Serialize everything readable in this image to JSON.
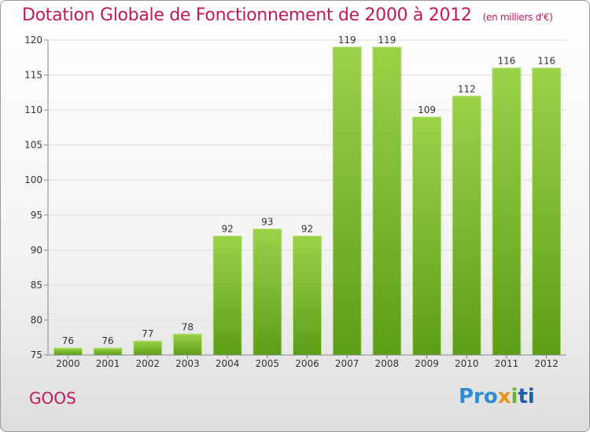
{
  "title": "Dotation Globale de Fonctionnement de 2000 à 2012",
  "subtitle": "(en milliers d'€)",
  "commune": "GOOS",
  "logo": {
    "p1": "Pro",
    "p2": "x",
    "p3": "i",
    "p4": "ti"
  },
  "chart_data": {
    "type": "bar",
    "title": "Dotation Globale de Fonctionnement de 2000 à 2012",
    "subtitle": "(en milliers d'€)",
    "categories": [
      "2000",
      "2001",
      "2002",
      "2003",
      "2004",
      "2005",
      "2006",
      "2007",
      "2008",
      "2009",
      "2010",
      "2011",
      "2012"
    ],
    "values": [
      76,
      76,
      77,
      78,
      92,
      93,
      92,
      119,
      119,
      109,
      112,
      116,
      116
    ],
    "ylim": [
      75,
      120
    ],
    "yticks": [
      75,
      80,
      85,
      90,
      95,
      100,
      105,
      110,
      115,
      120
    ],
    "grid": true,
    "bar_color": "#7dc130"
  }
}
